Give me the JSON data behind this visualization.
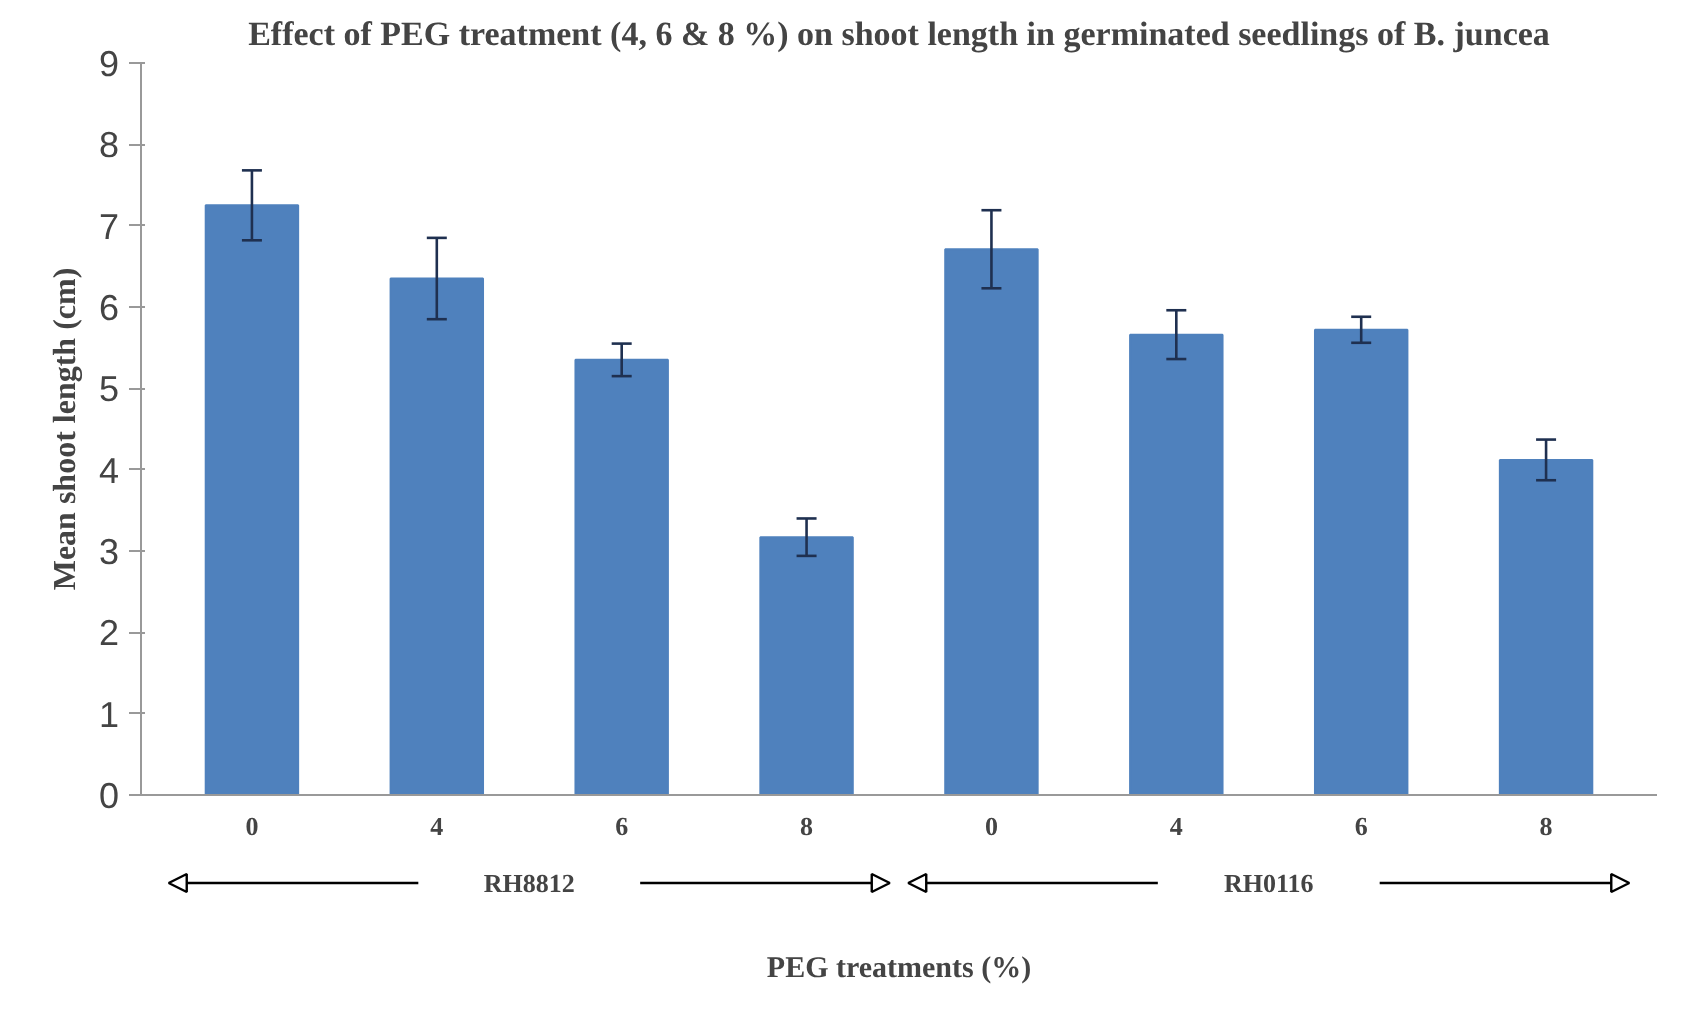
{
  "chart_data": {
    "type": "bar",
    "title": "Effect of PEG treatment (4, 6 & 8 %) on shoot length in germinated seedlings of B. juncea",
    "xlabel": "PEG treatments (%)",
    "ylabel": "Mean shoot length (cm)",
    "categories": [
      "0",
      "4",
      "6",
      "8",
      "0",
      "4",
      "6",
      "8"
    ],
    "values": [
      7.25,
      6.35,
      5.35,
      3.17,
      6.71,
      5.66,
      5.72,
      4.12
    ],
    "errors": [
      0.43,
      0.5,
      0.2,
      0.23,
      0.48,
      0.3,
      0.16,
      0.25
    ],
    "color": "#4f81bd",
    "ylim": [
      0,
      9
    ],
    "yticks": [
      0,
      1,
      2,
      3,
      4,
      5,
      6,
      7,
      8,
      9
    ],
    "grid": false,
    "annotations": [
      "RH8812",
      "RH0116"
    ]
  }
}
